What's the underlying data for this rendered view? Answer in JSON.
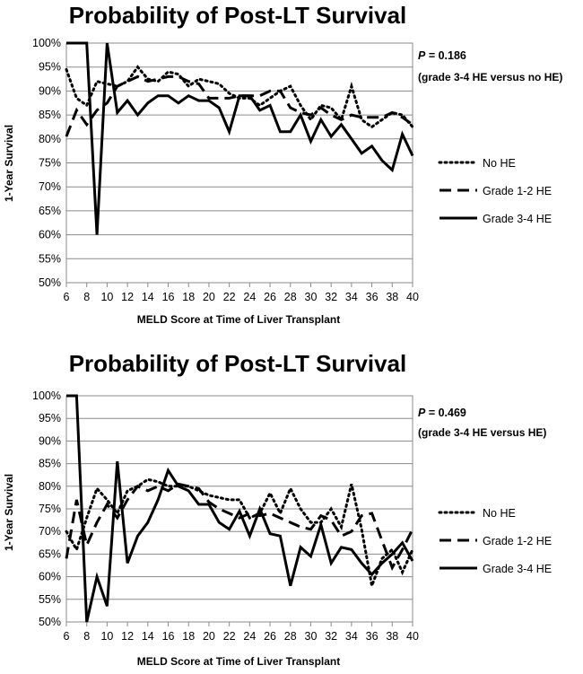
{
  "chart_data": [
    {
      "type": "line",
      "title": "Probability of Post-LT Survival",
      "xlabel": "MELD Score at Time of Liver Transplant",
      "ylabel": "1-Year Survival",
      "xlim": [
        6,
        40
      ],
      "ylim": [
        50,
        100
      ],
      "x_ticks": [
        "6",
        "8",
        "10",
        "12",
        "14",
        "16",
        "18",
        "20",
        "22",
        "24",
        "26",
        "28",
        "30",
        "32",
        "34",
        "36",
        "38",
        "40"
      ],
      "y_ticks": [
        "50%",
        "55%",
        "60%",
        "65%",
        "70%",
        "75%",
        "80%",
        "85%",
        "90%",
        "95%",
        "100%"
      ],
      "grid": "horizontal",
      "legend": "right",
      "annotation": {
        "p_label": "P",
        "p_value": " = 0.186",
        "comparison": "(grade 3-4 HE versus no HE)"
      },
      "x": [
        6,
        7,
        8,
        9,
        10,
        11,
        12,
        13,
        14,
        15,
        16,
        17,
        18,
        19,
        20,
        21,
        22,
        23,
        24,
        25,
        26,
        27,
        28,
        29,
        30,
        31,
        32,
        33,
        34,
        35,
        36,
        37,
        38,
        39,
        40
      ],
      "series": [
        {
          "name": "No HE",
          "style": "dotted",
          "values": [
            94.5,
            88.5,
            87,
            92,
            91.5,
            91,
            92,
            95,
            92.5,
            92,
            94,
            93.5,
            91,
            92.5,
            92,
            91.5,
            89.5,
            88.5,
            88.5,
            87,
            88.5,
            90,
            91,
            87,
            84,
            87,
            86.5,
            84,
            91,
            84,
            82.5,
            84,
            85.5,
            85,
            82.5
          ]
        },
        {
          "name": "Grade 1-2 HE",
          "style": "dashed",
          "values": [
            80.5,
            86,
            83,
            86,
            87.5,
            91,
            92,
            93,
            92,
            92.5,
            93,
            93,
            92,
            91.5,
            88.5,
            88.5,
            88.5,
            89,
            89,
            89,
            90,
            90,
            86.5,
            85.5,
            85,
            86.5,
            85,
            84,
            85,
            84.5,
            84.5,
            84.5,
            85.5,
            84.5,
            83
          ]
        },
        {
          "name": "Grade 3-4 HE",
          "style": "solid",
          "values": [
            100,
            100,
            100,
            60,
            100,
            85.5,
            88,
            85,
            87.5,
            89,
            89,
            87.5,
            89,
            88,
            88,
            86.5,
            81.5,
            89,
            89,
            86,
            87,
            81.5,
            81.5,
            85,
            79.5,
            84,
            80.5,
            83,
            80,
            77,
            78.5,
            75.5,
            73.5,
            81,
            76.5
          ]
        }
      ]
    },
    {
      "type": "line",
      "title": "Probability of Post-LT Survival",
      "xlabel": "MELD Score at Time of Liver Transplant",
      "ylabel": "1-Year Survival",
      "xlim": [
        6,
        40
      ],
      "ylim": [
        50,
        100
      ],
      "x_ticks": [
        "6",
        "8",
        "10",
        "12",
        "14",
        "16",
        "18",
        "20",
        "22",
        "24",
        "26",
        "28",
        "30",
        "32",
        "34",
        "36",
        "38",
        "40"
      ],
      "y_ticks": [
        "50%",
        "55%",
        "60%",
        "65%",
        "70%",
        "75%",
        "80%",
        "85%",
        "90%",
        "95%",
        "100%"
      ],
      "grid": "horizontal",
      "legend": "right",
      "annotation": {
        "p_label": "P",
        "p_value": " = 0.469",
        "comparison": "(grade 3-4 HE versus HE)"
      },
      "x": [
        6,
        7,
        8,
        9,
        10,
        11,
        12,
        13,
        14,
        15,
        16,
        17,
        18,
        19,
        20,
        21,
        22,
        23,
        24,
        25,
        26,
        27,
        28,
        29,
        30,
        31,
        32,
        33,
        34,
        35,
        36,
        37,
        38,
        39,
        40
      ],
      "series": [
        {
          "name": "No HE",
          "style": "dotted",
          "values": [
            70,
            66,
            73,
            79.5,
            77,
            74,
            79,
            80,
            81.5,
            81,
            80,
            80,
            80,
            79,
            78,
            77.5,
            77,
            77,
            73,
            74,
            78.5,
            74,
            79.5,
            75,
            72,
            72,
            75,
            71,
            80.5,
            70.5,
            58,
            64,
            66,
            61,
            66
          ]
        },
        {
          "name": "Grade 1-2 HE",
          "style": "dashed",
          "values": [
            64,
            77,
            67,
            72,
            76,
            73,
            77,
            80,
            79,
            80,
            79,
            80.5,
            80,
            79.5,
            76.5,
            75,
            74,
            73,
            74,
            73.5,
            74,
            73,
            72,
            71,
            70.5,
            73.5,
            72.5,
            69,
            70,
            73.5,
            74,
            68,
            62,
            66,
            70.5
          ]
        },
        {
          "name": "Grade 3-4 HE",
          "style": "solid",
          "values": [
            100,
            100,
            50,
            60,
            53.5,
            85.5,
            63,
            69,
            72,
            77,
            83.5,
            80,
            79,
            76,
            76,
            72,
            70.5,
            74.5,
            69,
            75,
            69.5,
            69,
            58,
            66.5,
            64.5,
            71.5,
            63,
            66.5,
            66,
            63,
            60.5,
            63,
            65,
            67.5,
            63.5
          ]
        }
      ]
    }
  ]
}
